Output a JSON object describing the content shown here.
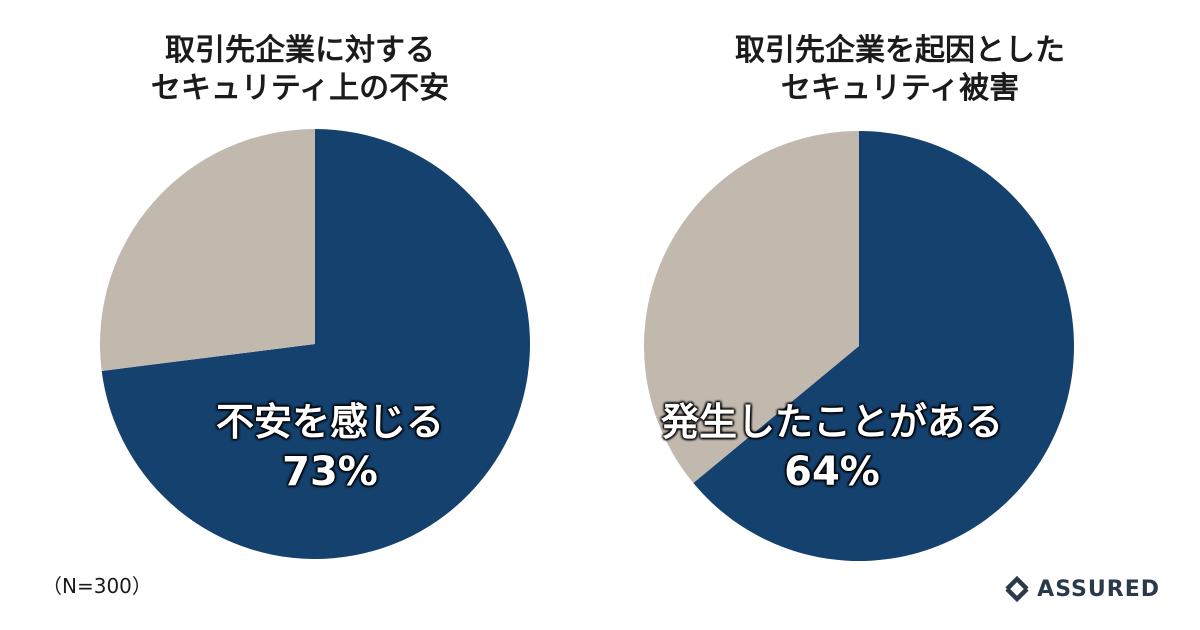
{
  "chart_data": [
    {
      "type": "pie",
      "title_lines": [
        "取引先企業に対する",
        "セキュリティ上の不安"
      ],
      "slices": [
        {
          "label": "不安を感じる",
          "value": 73,
          "value_label": "73%",
          "color": "#15416e"
        },
        {
          "label": "",
          "value": 27,
          "color": "#c2b9ae"
        }
      ]
    },
    {
      "type": "pie",
      "title_lines": [
        "取引先企業を起因とした",
        "セキュリティ被害"
      ],
      "slices": [
        {
          "label": "発生したことがある",
          "value": 64,
          "value_label": "64%",
          "color": "#15416e"
        },
        {
          "label": "",
          "value": 36,
          "color": "#c2b9ae"
        }
      ]
    }
  ],
  "note": "（N=300）",
  "logo": {
    "text": "ASSURED",
    "icon": "assured-logo-icon",
    "color": "#2b3a4a"
  }
}
